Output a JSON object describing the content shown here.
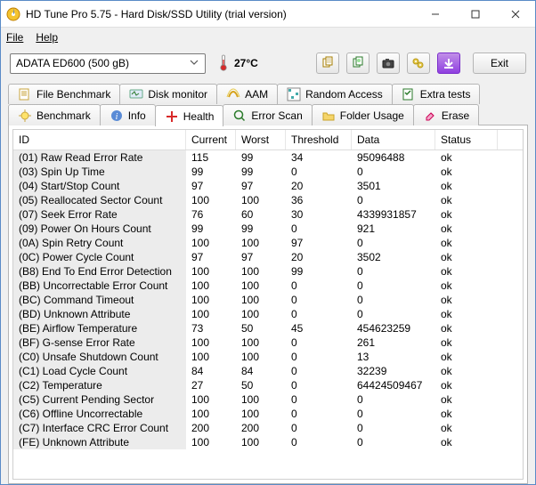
{
  "window": {
    "title": "HD Tune Pro 5.75 - Hard Disk/SSD Utility (trial version)"
  },
  "menu": {
    "file": "File",
    "help": "Help"
  },
  "toolbar": {
    "drive": "ADATA   ED600 (500 gB)",
    "temperature": "27°C",
    "exit_label": "Exit"
  },
  "tabs_row1": [
    {
      "id": "file-benchmark",
      "label": "File Benchmark"
    },
    {
      "id": "disk-monitor",
      "label": "Disk monitor"
    },
    {
      "id": "aam",
      "label": "AAM"
    },
    {
      "id": "random-access",
      "label": "Random Access"
    },
    {
      "id": "extra-tests",
      "label": "Extra tests"
    }
  ],
  "tabs_row2": [
    {
      "id": "benchmark",
      "label": "Benchmark"
    },
    {
      "id": "info",
      "label": "Info"
    },
    {
      "id": "health",
      "label": "Health"
    },
    {
      "id": "error-scan",
      "label": "Error Scan"
    },
    {
      "id": "folder-usage",
      "label": "Folder Usage"
    },
    {
      "id": "erase",
      "label": "Erase"
    }
  ],
  "active_tab": "health",
  "table": {
    "headers": {
      "id": "ID",
      "current": "Current",
      "worst": "Worst",
      "threshold": "Threshold",
      "data": "Data",
      "status": "Status"
    },
    "rows": [
      {
        "id": "(01) Raw Read Error Rate",
        "current": "115",
        "worst": "99",
        "threshold": "34",
        "data": "95096488",
        "status": "ok"
      },
      {
        "id": "(03) Spin Up Time",
        "current": "99",
        "worst": "99",
        "threshold": "0",
        "data": "0",
        "status": "ok"
      },
      {
        "id": "(04) Start/Stop Count",
        "current": "97",
        "worst": "97",
        "threshold": "20",
        "data": "3501",
        "status": "ok"
      },
      {
        "id": "(05) Reallocated Sector Count",
        "current": "100",
        "worst": "100",
        "threshold": "36",
        "data": "0",
        "status": "ok"
      },
      {
        "id": "(07) Seek Error Rate",
        "current": "76",
        "worst": "60",
        "threshold": "30",
        "data": "4339931857",
        "status": "ok"
      },
      {
        "id": "(09) Power On Hours Count",
        "current": "99",
        "worst": "99",
        "threshold": "0",
        "data": "921",
        "status": "ok"
      },
      {
        "id": "(0A) Spin Retry Count",
        "current": "100",
        "worst": "100",
        "threshold": "97",
        "data": "0",
        "status": "ok"
      },
      {
        "id": "(0C) Power Cycle Count",
        "current": "97",
        "worst": "97",
        "threshold": "20",
        "data": "3502",
        "status": "ok"
      },
      {
        "id": "(B8) End To End Error Detection",
        "current": "100",
        "worst": "100",
        "threshold": "99",
        "data": "0",
        "status": "ok"
      },
      {
        "id": "(BB) Uncorrectable Error Count",
        "current": "100",
        "worst": "100",
        "threshold": "0",
        "data": "0",
        "status": "ok"
      },
      {
        "id": "(BC) Command Timeout",
        "current": "100",
        "worst": "100",
        "threshold": "0",
        "data": "0",
        "status": "ok"
      },
      {
        "id": "(BD) Unknown Attribute",
        "current": "100",
        "worst": "100",
        "threshold": "0",
        "data": "0",
        "status": "ok"
      },
      {
        "id": "(BE) Airflow Temperature",
        "current": "73",
        "worst": "50",
        "threshold": "45",
        "data": "454623259",
        "status": "ok"
      },
      {
        "id": "(BF) G-sense Error Rate",
        "current": "100",
        "worst": "100",
        "threshold": "0",
        "data": "261",
        "status": "ok"
      },
      {
        "id": "(C0) Unsafe Shutdown Count",
        "current": "100",
        "worst": "100",
        "threshold": "0",
        "data": "13",
        "status": "ok"
      },
      {
        "id": "(C1) Load Cycle Count",
        "current": "84",
        "worst": "84",
        "threshold": "0",
        "data": "32239",
        "status": "ok"
      },
      {
        "id": "(C2) Temperature",
        "current": "27",
        "worst": "50",
        "threshold": "0",
        "data": "64424509467",
        "status": "ok"
      },
      {
        "id": "(C5) Current Pending Sector",
        "current": "100",
        "worst": "100",
        "threshold": "0",
        "data": "0",
        "status": "ok"
      },
      {
        "id": "(C6) Offline Uncorrectable",
        "current": "100",
        "worst": "100",
        "threshold": "0",
        "data": "0",
        "status": "ok"
      },
      {
        "id": "(C7) Interface CRC Error Count",
        "current": "200",
        "worst": "200",
        "threshold": "0",
        "data": "0",
        "status": "ok"
      },
      {
        "id": "(FE) Unknown Attribute",
        "current": "100",
        "worst": "100",
        "threshold": "0",
        "data": "0",
        "status": "ok"
      }
    ]
  },
  "colors": {
    "accent_purple": "#8f3fe0",
    "row_gray": "#ececec"
  }
}
